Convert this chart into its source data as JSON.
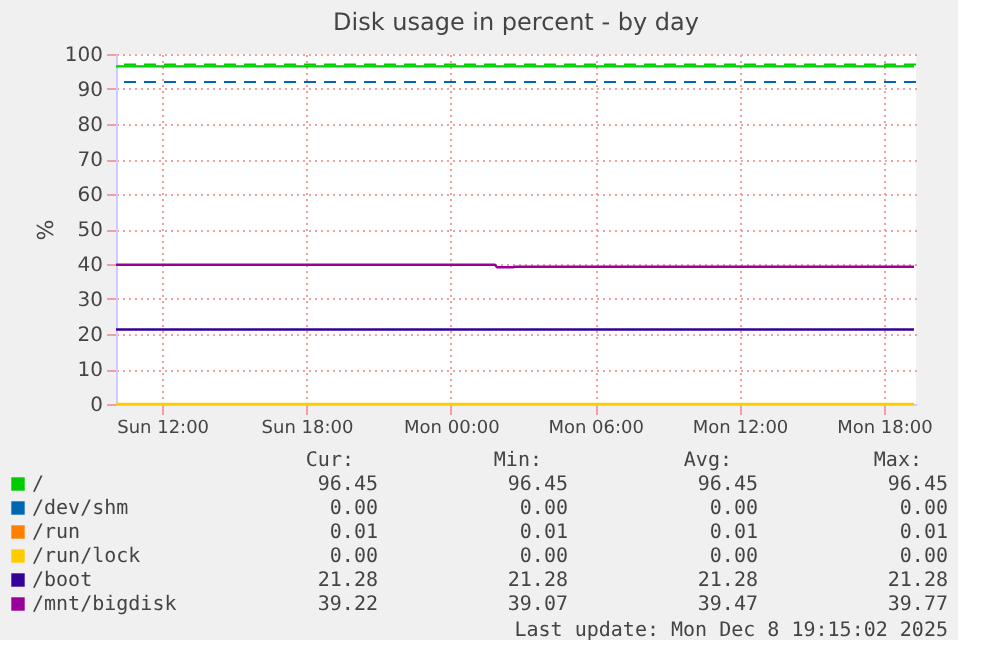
{
  "chart_data": {
    "type": "line",
    "title": "Disk usage in percent - by day",
    "ylabel": "%",
    "x": [
      "2025-12-07T10:05",
      "2025-12-08T19:15"
    ],
    "xlim": [
      "2025-12-07T10:05",
      "2025-12-08T19:20"
    ],
    "xticks": [
      {
        "value": "2025-12-07T12:00",
        "label": "Sun 12:00"
      },
      {
        "value": "2025-12-07T18:00",
        "label": "Sun 18:00"
      },
      {
        "value": "2025-12-08T00:00",
        "label": "Mon 00:00"
      },
      {
        "value": "2025-12-08T06:00",
        "label": "Mon 06:00"
      },
      {
        "value": "2025-12-08T12:00",
        "label": "Mon 12:00"
      },
      {
        "value": "2025-12-08T18:00",
        "label": "Mon 18:00"
      }
    ],
    "ylim": [
      0,
      100
    ],
    "yticks": [
      0,
      10,
      20,
      30,
      40,
      50,
      60,
      70,
      80,
      90,
      100
    ],
    "grid": true,
    "legend": "bottom",
    "line_style": "solid",
    "marker": "none",
    "series": [
      {
        "name": "/",
        "color": "#00cc00",
        "values": [
          96.45,
          96.45
        ]
      },
      {
        "name": "/dev/shm",
        "color": "#0066b3",
        "values": [
          null,
          null
        ]
      },
      {
        "name": "/run",
        "color": "#ff8000",
        "values": [
          null,
          null
        ]
      },
      {
        "name": "/run/lock",
        "color": "#ffcc00",
        "values": [
          0.0,
          0.0
        ]
      },
      {
        "name": "/boot",
        "color": "#330099",
        "values": [
          21.28,
          21.28
        ]
      },
      {
        "name": "/mnt/bigdisk",
        "color": "#990099",
        "x": [
          "2025-12-07T10:05",
          "2025-12-08T01:50",
          "2025-12-08T01:55",
          "2025-12-08T02:35",
          "2025-12-08T02:40",
          "2025-12-08T19:15"
        ],
        "values": [
          39.77,
          39.77,
          39.07,
          39.07,
          39.22,
          39.22
        ]
      }
    ],
    "ref_lines": [
      {
        "axis": "y",
        "value": 97,
        "color": "#00cc00",
        "line_style": "dashed"
      },
      {
        "axis": "y",
        "value": 92,
        "color": "#0066b3",
        "line_style": "dashed"
      }
    ],
    "annotations": [
      "Cur:",
      "Min:",
      "Avg:",
      "Max:",
      "96.45",
      "96.45",
      "96.45",
      "96.45",
      "0.00",
      "0.00",
      "0.00",
      "0.00",
      "0.01",
      "0.01",
      "0.01",
      "0.01",
      "0.00",
      "0.00",
      "0.00",
      "0.00",
      "21.28",
      "21.28",
      "21.28",
      "21.28",
      "39.22",
      "39.07",
      "39.47",
      "39.77",
      "Last update: Mon Dec  8 19:15:02 2025"
    ]
  }
}
